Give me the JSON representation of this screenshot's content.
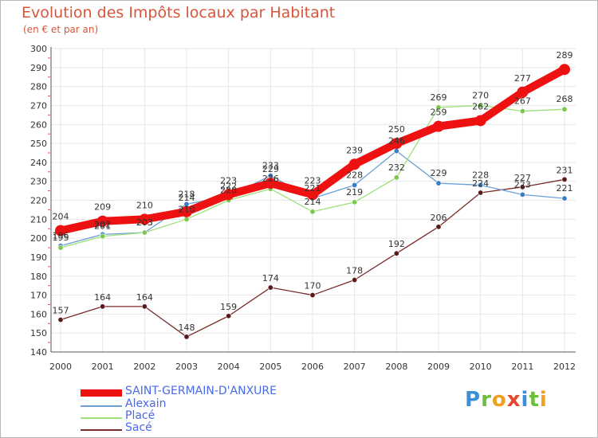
{
  "page": {
    "title": "Evolution des Impôts locaux par Habitant",
    "subtitle": "(en € et par an)",
    "logo_letters": [
      {
        "ch": "P",
        "color": "#3a8fd6"
      },
      {
        "ch": "r",
        "color": "#6cbf3c"
      },
      {
        "ch": "o",
        "color": "#f0a020"
      },
      {
        "ch": "x",
        "color": "#e8452c"
      },
      {
        "ch": "i",
        "color": "#3a8fd6"
      },
      {
        "ch": "t",
        "color": "#6cbf3c"
      },
      {
        "ch": "i",
        "color": "#f0a020"
      }
    ]
  },
  "chart_data": {
    "type": "line",
    "title": "Evolution des Impôts locaux par Habitant",
    "subtitle": "(en € et par an)",
    "xlabel": "",
    "ylabel": "",
    "categories": [
      "2000",
      "2001",
      "2002",
      "2003",
      "2004",
      "2005",
      "2006",
      "2007",
      "2008",
      "2009",
      "2010",
      "2011",
      "2012"
    ],
    "ylim": [
      140,
      300
    ],
    "yticks": [
      140,
      150,
      160,
      170,
      180,
      190,
      200,
      210,
      220,
      230,
      240,
      250,
      260,
      270,
      280,
      290,
      300
    ],
    "grid": true,
    "legend_position": "bottom-left",
    "series": [
      {
        "name": "Sacé",
        "color": "#7a2a2a",
        "marker": "#5a1a1a",
        "weight": "thin",
        "values": [
          157,
          164,
          164,
          148,
          159,
          174,
          170,
          178,
          192,
          206,
          224,
          227,
          231
        ]
      },
      {
        "name": "Alexain",
        "color": "#6a9fd8",
        "marker": "#3a7cc8",
        "weight": "thin",
        "values": [
          196,
          202,
          203,
          218,
          222,
          233,
          221,
          228,
          246,
          229,
          228,
          223,
          221
        ]
      },
      {
        "name": "Placé",
        "color": "#9ee07a",
        "marker": "#7cc84e",
        "weight": "thin",
        "values": [
          195,
          201,
          203,
          210,
          220,
          226,
          214,
          219,
          232,
          269,
          270,
          267,
          268
        ]
      },
      {
        "name": "SAINT-GERMAIN-D'ANXURE",
        "color": "#ee1111",
        "marker": "#ee1111",
        "weight": "thick",
        "values": [
          204,
          209,
          210,
          214,
          223,
          229,
          223,
          239,
          250,
          259,
          262,
          277,
          289
        ]
      }
    ],
    "legend_order": [
      "SAINT-GERMAIN-D'ANXURE",
      "Alexain",
      "Placé",
      "Sacé"
    ]
  }
}
